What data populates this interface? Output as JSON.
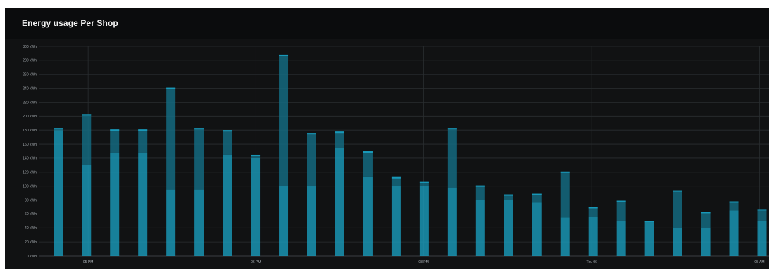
{
  "panel": {
    "title": "Energy usage Per Shop"
  },
  "colors": {
    "background": "#111213",
    "header": "#0b0c0d",
    "grid": "#2a2e31",
    "bar_light": "#1a9fc0",
    "bar_dark": "#146a80"
  },
  "chart_data": {
    "type": "bar",
    "stacked": true,
    "y_ticks": [
      "0 kWh",
      "20 kWh",
      "40 kWh",
      "60 kWh",
      "80 kWh",
      "100 kWh",
      "120 kWh",
      "140 kWh",
      "160 kWh",
      "180 kWh",
      "200 kWh",
      "220 kWh",
      "240 kWh",
      "260 kWh",
      "280 kWh",
      "300 kWh"
    ],
    "ylim": [
      0,
      300
    ],
    "x_ticks": [
      {
        "label": "05 PM",
        "pos": 1.06
      },
      {
        "label": "06 PM",
        "pos": 7.02
      },
      {
        "label": "08 PM",
        "pos": 12.98
      },
      {
        "label": "Thu 06",
        "pos": 18.95
      },
      {
        "label": "05 AM",
        "pos": 24.91
      }
    ],
    "xlim": [
      -0.67,
      25.25
    ],
    "grid": true,
    "legend": "none",
    "bars": [
      {
        "total": 183,
        "lower": 180
      },
      {
        "total": 203,
        "lower": 130
      },
      {
        "total": 181,
        "lower": 148
      },
      {
        "total": 181,
        "lower": 148
      },
      {
        "total": 241,
        "lower": 95
      },
      {
        "total": 183,
        "lower": 95
      },
      {
        "total": 180,
        "lower": 145
      },
      {
        "total": 145,
        "lower": 140
      },
      {
        "total": 288,
        "lower": 100
      },
      {
        "total": 176,
        "lower": 100
      },
      {
        "total": 178,
        "lower": 155
      },
      {
        "total": 150,
        "lower": 113
      },
      {
        "total": 113,
        "lower": 100
      },
      {
        "total": 106,
        "lower": 100
      },
      {
        "total": 183,
        "lower": 98
      },
      {
        "total": 101,
        "lower": 80
      },
      {
        "total": 88,
        "lower": 80
      },
      {
        "total": 89,
        "lower": 76
      },
      {
        "total": 121,
        "lower": 55
      },
      {
        "total": 70,
        "lower": 56
      },
      {
        "total": 79,
        "lower": 50
      },
      {
        "total": 50,
        "lower": 48
      },
      {
        "total": 94,
        "lower": 40
      },
      {
        "total": 63,
        "lower": 40
      },
      {
        "total": 78,
        "lower": 65
      },
      {
        "total": 67,
        "lower": 50
      }
    ]
  }
}
